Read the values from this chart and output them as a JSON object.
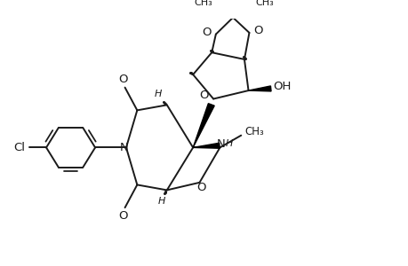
{
  "bg_color": "#ffffff",
  "line_color": "#1a1a1a",
  "lw": 1.4,
  "bold_lw": 4.5,
  "xlim": [
    0,
    10
  ],
  "ylim": [
    0,
    6.5
  ],
  "figsize": [
    4.6,
    3.0
  ],
  "dpi": 100
}
